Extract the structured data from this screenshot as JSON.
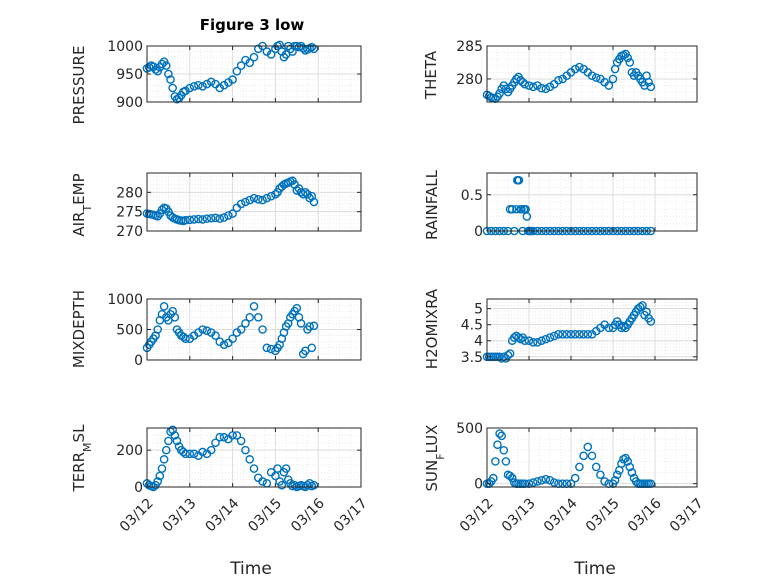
{
  "figure": {
    "title": "Figure 3 low",
    "xlabel": "Time",
    "marker_color": "#0072BD",
    "axis_color": "#262626",
    "grid_color": "#e6e6e6",
    "date_ticks": [
      "03/12",
      "03/13",
      "03/14",
      "03/15",
      "03/16",
      "03/17"
    ]
  },
  "chart_data": [
    {
      "type": "scatter",
      "name": "PRESSURE",
      "ylabel": "PRESSURE",
      "ylim": [
        900,
        1000
      ],
      "yticks": [
        "900",
        "950",
        "1000"
      ],
      "ytick_values": [
        900,
        950,
        1000
      ],
      "xlim": [
        "03/12",
        "03/17"
      ],
      "grid": true,
      "title": "Figure 3 low",
      "x_days": [
        0.0,
        0.05,
        0.1,
        0.15,
        0.2,
        0.25,
        0.3,
        0.35,
        0.4,
        0.45,
        0.5,
        0.55,
        0.6,
        0.65,
        0.7,
        0.75,
        0.8,
        0.85,
        0.9,
        1.0,
        1.1,
        1.2,
        1.3,
        1.4,
        1.5,
        1.6,
        1.7,
        1.8,
        1.9,
        2.0,
        2.1,
        2.2,
        2.3,
        2.4,
        2.5,
        2.6,
        2.7,
        2.8,
        2.9,
        3.0,
        3.05,
        3.1,
        3.15,
        3.2,
        3.25,
        3.3,
        3.35,
        3.4,
        3.45,
        3.5,
        3.55,
        3.6,
        3.65,
        3.7,
        3.75,
        3.8,
        3.85,
        3.9
      ],
      "y": [
        960,
        962,
        965,
        963,
        958,
        955,
        962,
        968,
        972,
        965,
        950,
        940,
        925,
        910,
        905,
        907,
        912,
        918,
        920,
        925,
        928,
        930,
        928,
        932,
        936,
        932,
        925,
        930,
        935,
        940,
        955,
        965,
        975,
        970,
        980,
        995,
        1000,
        990,
        985,
        995,
        1000,
        1002,
        990,
        980,
        985,
        1000,
        995,
        990,
        1000,
        1000,
        998,
        1000,
        996,
        992,
        994,
        996,
        998,
        995
      ]
    },
    {
      "type": "scatter",
      "name": "THETA",
      "ylabel": "THETA",
      "ylim": [
        276.5,
        285
      ],
      "yticks": [
        "280",
        "285"
      ],
      "ytick_values": [
        280,
        285
      ],
      "xlim": [
        "03/12",
        "03/17"
      ],
      "grid": true,
      "x_days": [
        0.0,
        0.05,
        0.1,
        0.15,
        0.2,
        0.25,
        0.3,
        0.35,
        0.4,
        0.45,
        0.5,
        0.55,
        0.6,
        0.65,
        0.7,
        0.75,
        0.8,
        0.85,
        0.9,
        1.0,
        1.1,
        1.2,
        1.3,
        1.4,
        1.5,
        1.6,
        1.7,
        1.8,
        1.9,
        2.0,
        2.1,
        2.2,
        2.3,
        2.4,
        2.5,
        2.6,
        2.7,
        2.8,
        2.9,
        3.0,
        3.05,
        3.1,
        3.15,
        3.2,
        3.25,
        3.3,
        3.35,
        3.4,
        3.45,
        3.5,
        3.55,
        3.6,
        3.65,
        3.7,
        3.75,
        3.8,
        3.85,
        3.9
      ],
      "y": [
        277.6,
        277.4,
        277.2,
        277.1,
        277.0,
        277.3,
        277.8,
        278.5,
        279.0,
        278.5,
        278.0,
        278.5,
        279.0,
        279.5,
        280.0,
        280.3,
        279.8,
        279.5,
        279.2,
        279.0,
        278.8,
        279.0,
        278.6,
        278.5,
        278.8,
        279.2,
        279.8,
        280.0,
        280.5,
        281.0,
        281.5,
        281.8,
        281.5,
        281.0,
        280.5,
        280.2,
        280.0,
        279.5,
        279.0,
        280.0,
        281.5,
        282.5,
        283.0,
        283.5,
        283.6,
        283.8,
        283.2,
        282.5,
        281.0,
        280.5,
        281.0,
        280.5,
        280.0,
        279.5,
        279.0,
        280.5,
        279.5,
        278.8
      ]
    },
    {
      "type": "scatter",
      "name": "AIR_TEMP",
      "ylabel": "AIR_TEMP",
      "ylim": [
        270,
        285
      ],
      "yticks": [
        "270",
        "275",
        "280"
      ],
      "ytick_values": [
        270,
        275,
        280
      ],
      "xlim": [
        "03/12",
        "03/17"
      ],
      "grid": true,
      "x_days": [
        0.0,
        0.05,
        0.1,
        0.15,
        0.2,
        0.25,
        0.3,
        0.35,
        0.4,
        0.45,
        0.5,
        0.55,
        0.6,
        0.65,
        0.7,
        0.75,
        0.8,
        0.85,
        0.9,
        1.0,
        1.1,
        1.2,
        1.3,
        1.4,
        1.5,
        1.6,
        1.7,
        1.8,
        1.9,
        2.0,
        2.1,
        2.2,
        2.3,
        2.4,
        2.5,
        2.6,
        2.7,
        2.8,
        2.9,
        3.0,
        3.05,
        3.1,
        3.15,
        3.2,
        3.25,
        3.3,
        3.35,
        3.4,
        3.45,
        3.5,
        3.55,
        3.6,
        3.65,
        3.7,
        3.75,
        3.8,
        3.85,
        3.9
      ],
      "y": [
        274.5,
        274.4,
        274.3,
        274.2,
        274.0,
        273.8,
        274.5,
        275.5,
        276.0,
        275.8,
        275.0,
        274.0,
        273.5,
        273.2,
        273.0,
        272.8,
        272.7,
        272.6,
        272.8,
        272.9,
        273.0,
        273.1,
        273.0,
        273.2,
        273.3,
        273.4,
        273.2,
        273.5,
        274.0,
        274.5,
        276.0,
        277.0,
        277.5,
        278.0,
        278.5,
        278.2,
        278.0,
        278.5,
        279.0,
        279.5,
        280.0,
        281.0,
        281.5,
        282.0,
        282.3,
        282.5,
        282.8,
        283.0,
        282.0,
        280.5,
        281.0,
        280.0,
        279.5,
        280.0,
        279.5,
        278.5,
        279.0,
        277.5
      ]
    },
    {
      "type": "scatter",
      "name": "RAINFALL",
      "ylabel": "RAINFALL",
      "ylim": [
        0,
        0.8
      ],
      "yticks": [
        "0",
        "0.5"
      ],
      "ytick_values": [
        0,
        0.5
      ],
      "xlim": [
        "03/12",
        "03/17"
      ],
      "grid": true,
      "x_days": [
        0.0,
        0.1,
        0.2,
        0.3,
        0.4,
        0.5,
        0.55,
        0.6,
        0.65,
        0.7,
        0.72,
        0.74,
        0.76,
        0.8,
        0.82,
        0.85,
        0.88,
        0.9,
        0.92,
        0.95,
        0.98,
        1.0,
        1.02,
        1.05,
        1.1,
        1.2,
        1.3,
        1.4,
        1.5,
        1.6,
        1.7,
        1.8,
        1.9,
        2.0,
        2.1,
        2.2,
        2.3,
        2.4,
        2.5,
        2.6,
        2.7,
        2.8,
        2.9,
        3.0,
        3.1,
        3.2,
        3.3,
        3.4,
        3.5,
        3.6,
        3.7,
        3.8,
        3.9
      ],
      "y": [
        0,
        0,
        0,
        0,
        0,
        0,
        0.3,
        0.3,
        0,
        0.3,
        0.7,
        0.7,
        0.7,
        0.3,
        0.3,
        0,
        0.3,
        0.3,
        0.3,
        0.2,
        0,
        0,
        0,
        0,
        0,
        0,
        0,
        0,
        0,
        0,
        0,
        0,
        0,
        0,
        0,
        0,
        0,
        0,
        0,
        0,
        0,
        0,
        0,
        0,
        0,
        0,
        0,
        0,
        0,
        0,
        0,
        0,
        0
      ]
    },
    {
      "type": "scatter",
      "name": "MIXDEPTH",
      "ylabel": "MIXDEPTH",
      "ylim": [
        0,
        1000
      ],
      "yticks": [
        "0",
        "500",
        "1000"
      ],
      "ytick_values": [
        0,
        500,
        1000
      ],
      "xlim": [
        "03/12",
        "03/17"
      ],
      "grid": true,
      "x_days": [
        0.0,
        0.05,
        0.1,
        0.15,
        0.2,
        0.25,
        0.3,
        0.35,
        0.4,
        0.45,
        0.5,
        0.55,
        0.6,
        0.65,
        0.7,
        0.75,
        0.8,
        0.85,
        0.9,
        1.0,
        1.1,
        1.2,
        1.3,
        1.4,
        1.5,
        1.6,
        1.7,
        1.8,
        1.9,
        2.0,
        2.1,
        2.2,
        2.3,
        2.4,
        2.5,
        2.6,
        2.7,
        2.8,
        2.9,
        3.0,
        3.05,
        3.1,
        3.15,
        3.2,
        3.25,
        3.3,
        3.35,
        3.4,
        3.45,
        3.5,
        3.55,
        3.6,
        3.65,
        3.7,
        3.75,
        3.8,
        3.85,
        3.9
      ],
      "y": [
        200,
        250,
        300,
        350,
        400,
        500,
        650,
        750,
        880,
        700,
        650,
        750,
        800,
        700,
        500,
        450,
        400,
        380,
        350,
        350,
        400,
        450,
        500,
        480,
        450,
        400,
        300,
        250,
        280,
        350,
        450,
        500,
        600,
        700,
        880,
        700,
        500,
        200,
        180,
        150,
        200,
        250,
        350,
        450,
        550,
        600,
        700,
        750,
        800,
        850,
        700,
        600,
        100,
        150,
        500,
        550,
        200,
        560
      ]
    },
    {
      "type": "scatter",
      "name": "H2OMIXRA",
      "ylabel": "H2OMIXRA",
      "ylim": [
        3.4,
        5.3
      ],
      "yticks": [
        "3.5",
        "4",
        "4.5",
        "5"
      ],
      "ytick_values": [
        3.5,
        4,
        4.5,
        5
      ],
      "xlim": [
        "03/12",
        "03/17"
      ],
      "grid": true,
      "x_days": [
        0.0,
        0.05,
        0.1,
        0.15,
        0.2,
        0.25,
        0.3,
        0.35,
        0.4,
        0.45,
        0.5,
        0.55,
        0.6,
        0.65,
        0.7,
        0.75,
        0.8,
        0.85,
        0.9,
        1.0,
        1.1,
        1.2,
        1.3,
        1.4,
        1.5,
        1.6,
        1.7,
        1.8,
        1.9,
        2.0,
        2.1,
        2.2,
        2.3,
        2.4,
        2.5,
        2.6,
        2.7,
        2.8,
        2.9,
        3.0,
        3.05,
        3.1,
        3.15,
        3.2,
        3.25,
        3.3,
        3.35,
        3.4,
        3.45,
        3.5,
        3.55,
        3.6,
        3.65,
        3.7,
        3.75,
        3.8,
        3.85,
        3.9
      ],
      "y": [
        3.5,
        3.5,
        3.5,
        3.5,
        3.5,
        3.5,
        3.5,
        3.45,
        3.5,
        3.45,
        3.55,
        3.6,
        4.0,
        4.1,
        4.15,
        4.1,
        4.05,
        4.1,
        4.0,
        4.0,
        3.95,
        3.95,
        4.0,
        4.05,
        4.1,
        4.15,
        4.2,
        4.2,
        4.2,
        4.2,
        4.2,
        4.2,
        4.2,
        4.2,
        4.2,
        4.3,
        4.4,
        4.5,
        4.4,
        4.4,
        4.5,
        4.6,
        4.5,
        4.4,
        4.45,
        4.4,
        4.5,
        4.6,
        4.7,
        4.8,
        4.9,
        5.0,
        5.05,
        5.1,
        4.8,
        4.9,
        4.7,
        4.6
      ]
    },
    {
      "type": "scatter",
      "name": "TERR_MSL",
      "ylabel": "TERR_MSL",
      "ylim": [
        0,
        320
      ],
      "yticks": [
        "0",
        "200"
      ],
      "ytick_values": [
        0,
        200
      ],
      "xlim": [
        "03/12",
        "03/17"
      ],
      "xticks": [
        "03/12",
        "03/13",
        "03/14",
        "03/15",
        "03/16",
        "03/17"
      ],
      "xlabel": "Time",
      "grid": true,
      "x_days": [
        0.0,
        0.05,
        0.1,
        0.15,
        0.2,
        0.25,
        0.3,
        0.35,
        0.4,
        0.45,
        0.5,
        0.55,
        0.6,
        0.65,
        0.7,
        0.75,
        0.8,
        0.85,
        0.9,
        1.0,
        1.1,
        1.2,
        1.3,
        1.4,
        1.5,
        1.6,
        1.7,
        1.8,
        1.9,
        2.0,
        2.1,
        2.2,
        2.3,
        2.4,
        2.5,
        2.6,
        2.7,
        2.8,
        2.9,
        3.0,
        3.05,
        3.1,
        3.15,
        3.2,
        3.25,
        3.3,
        3.35,
        3.4,
        3.45,
        3.5,
        3.55,
        3.6,
        3.65,
        3.7,
        3.75,
        3.8,
        3.85,
        3.9
      ],
      "y": [
        20,
        10,
        5,
        0,
        10,
        30,
        60,
        100,
        150,
        200,
        250,
        300,
        310,
        280,
        250,
        220,
        200,
        190,
        180,
        180,
        180,
        170,
        190,
        180,
        200,
        240,
        270,
        270,
        260,
        280,
        280,
        250,
        200,
        150,
        100,
        50,
        30,
        20,
        80,
        60,
        100,
        30,
        10,
        80,
        100,
        40,
        20,
        5,
        10,
        0,
        5,
        10,
        5,
        0,
        10,
        20,
        5,
        10
      ]
    },
    {
      "type": "scatter",
      "name": "SUN_FLUX",
      "ylabel": "SUN_FLUX",
      "ylim": [
        -30,
        500
      ],
      "yticks": [
        "0",
        "500"
      ],
      "ytick_values": [
        0,
        500
      ],
      "xlim": [
        "03/12",
        "03/17"
      ],
      "xticks": [
        "03/12",
        "03/13",
        "03/14",
        "03/15",
        "03/16",
        "03/17"
      ],
      "xlabel": "Time",
      "grid": true,
      "x_days": [
        0.0,
        0.05,
        0.1,
        0.15,
        0.2,
        0.25,
        0.3,
        0.35,
        0.4,
        0.45,
        0.5,
        0.55,
        0.6,
        0.65,
        0.7,
        0.75,
        0.8,
        0.85,
        0.9,
        1.0,
        1.1,
        1.2,
        1.3,
        1.4,
        1.5,
        1.6,
        1.7,
        1.8,
        1.9,
        2.0,
        2.1,
        2.2,
        2.3,
        2.4,
        2.5,
        2.6,
        2.7,
        2.8,
        2.9,
        3.0,
        3.05,
        3.1,
        3.15,
        3.2,
        3.25,
        3.3,
        3.35,
        3.4,
        3.45,
        3.5,
        3.55,
        3.6,
        3.65,
        3.7,
        3.75,
        3.8,
        3.85,
        3.9
      ],
      "y": [
        0,
        0,
        20,
        50,
        200,
        350,
        450,
        430,
        300,
        200,
        80,
        70,
        50,
        10,
        0,
        0,
        0,
        0,
        0,
        0,
        10,
        20,
        30,
        40,
        30,
        10,
        0,
        0,
        0,
        0,
        50,
        150,
        250,
        330,
        250,
        150,
        80,
        20,
        0,
        0,
        30,
        80,
        120,
        180,
        220,
        230,
        200,
        150,
        100,
        50,
        20,
        0,
        0,
        0,
        0,
        0,
        0,
        0
      ]
    }
  ]
}
